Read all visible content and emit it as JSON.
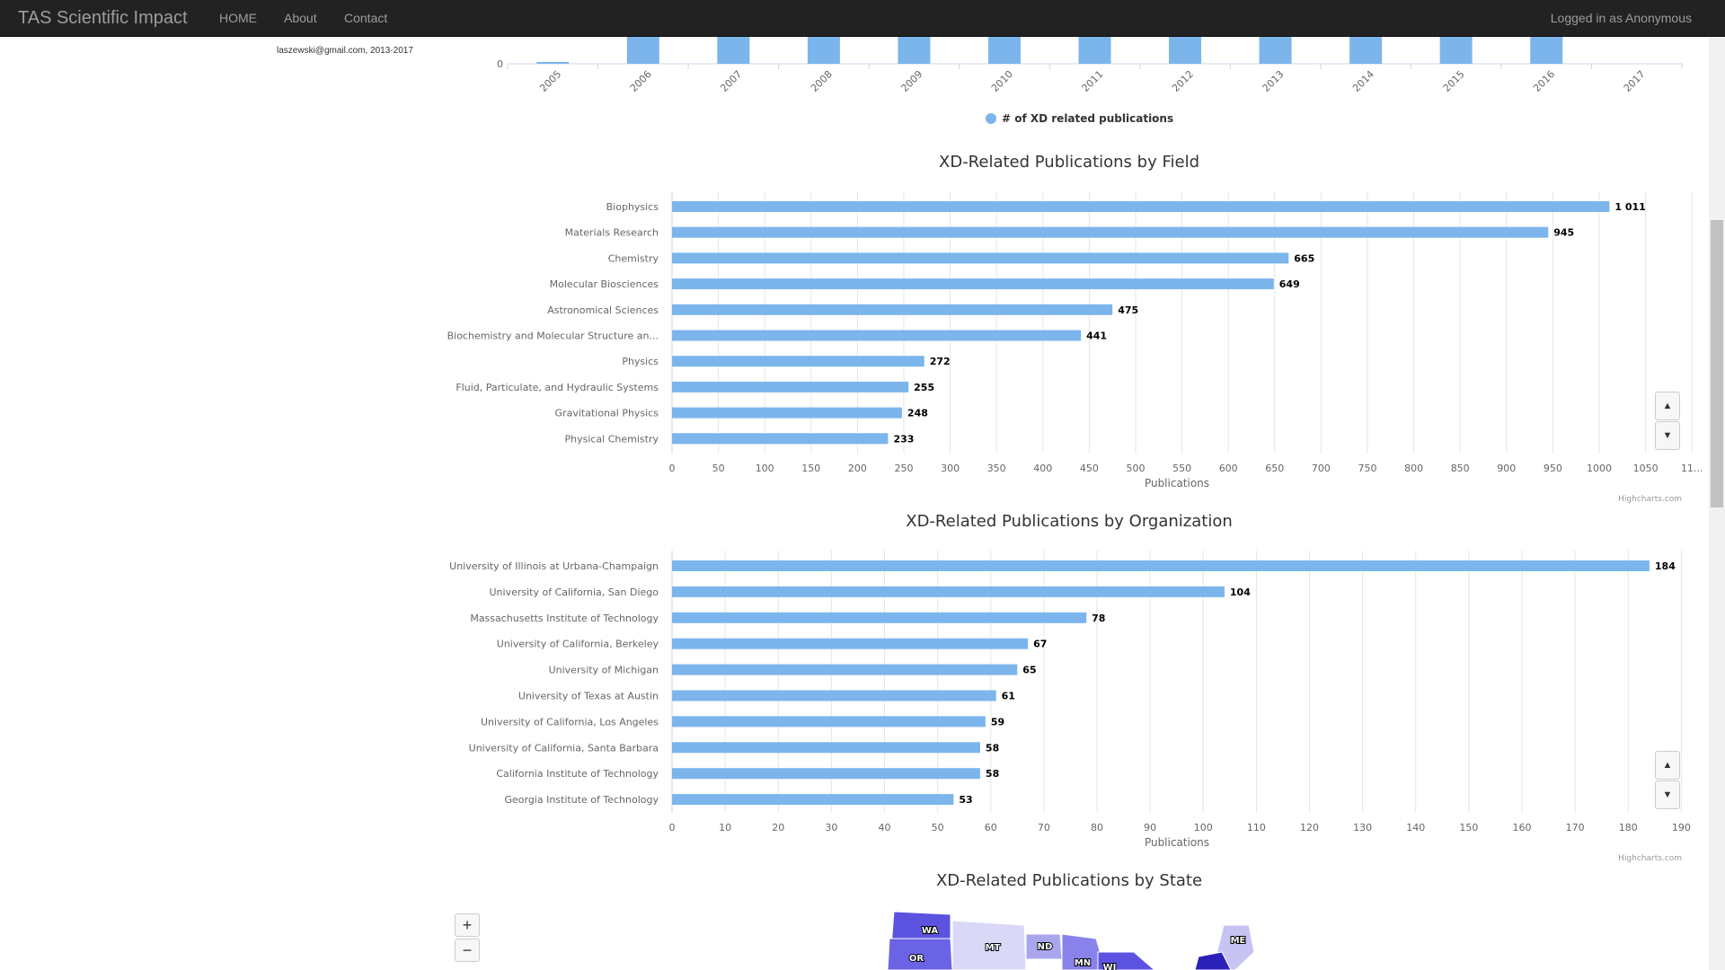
{
  "navbar": {
    "brand": "TAS Scientific Impact",
    "links": [
      "HOME",
      "About",
      "Contact"
    ],
    "user": "Logged in as Anonymous"
  },
  "sidebar": {
    "email_line": "laszewski@gmail.com, 2013-2017"
  },
  "colors": {
    "bar": "#7cb5ec",
    "grid": "#e6e6e6",
    "navbar": "#222222"
  },
  "chart_data": [
    {
      "type": "bar",
      "title": "",
      "categories": [
        "2005",
        "2006",
        "2007",
        "2008",
        "2009",
        "2010",
        "2011",
        "2012",
        "2013",
        "2014",
        "2015",
        "2016",
        "2017"
      ],
      "series": [
        {
          "name": "# of XD related publications",
          "values": [
            1,
            null,
            null,
            null,
            null,
            null,
            null,
            null,
            null,
            null,
            null,
            null,
            0
          ]
        }
      ],
      "ytick_visible": "0",
      "note_values_partially_visible": true
    },
    {
      "type": "bar",
      "orientation": "horizontal",
      "title": "XD-Related Publications by Field",
      "categories": [
        "Biophysics",
        "Materials Research",
        "Chemistry",
        "Molecular Biosciences",
        "Astronomical Sciences",
        "Biochemistry and Molecular Structure an...",
        "Physics",
        "Fluid, Particulate, and Hydraulic Systems",
        "Gravitational Physics",
        "Physical Chemistry"
      ],
      "values": [
        1011,
        945,
        665,
        649,
        475,
        441,
        272,
        255,
        248,
        233
      ],
      "value_labels": [
        "1 011",
        "945",
        "665",
        "649",
        "475",
        "441",
        "272",
        "255",
        "248",
        "233"
      ],
      "xlabel": "Publications",
      "xlim": [
        0,
        1100
      ],
      "ticks": [
        "0",
        "50",
        "100",
        "150",
        "200",
        "250",
        "300",
        "350",
        "400",
        "450",
        "500",
        "550",
        "600",
        "650",
        "700",
        "750",
        "800",
        "850",
        "900",
        "950",
        "1000",
        "1050",
        "11..."
      ],
      "credit": "Highcharts.com"
    },
    {
      "type": "bar",
      "orientation": "horizontal",
      "title": "XD-Related Publications by Organization",
      "categories": [
        "University of Illinois at Urbana-Champaign",
        "University of California, San Diego",
        "Massachusetts Institute of Technology",
        "University of California, Berkeley",
        "University of Michigan",
        "University of Texas at Austin",
        "University of California, Los Angeles",
        "University of California, Santa Barbara",
        "California Institute of Technology",
        "Georgia Institute of Technology"
      ],
      "values": [
        184,
        104,
        78,
        67,
        65,
        61,
        59,
        58,
        58,
        53
      ],
      "value_labels": [
        "184",
        "104",
        "78",
        "67",
        "65",
        "61",
        "59",
        "58",
        "58",
        "53"
      ],
      "xlabel": "Publications",
      "xlim": [
        0,
        190
      ],
      "ticks": [
        "0",
        "10",
        "20",
        "30",
        "40",
        "50",
        "60",
        "70",
        "80",
        "90",
        "100",
        "110",
        "120",
        "130",
        "140",
        "150",
        "160",
        "170",
        "180",
        "190"
      ],
      "credit": "Highcharts.com"
    },
    {
      "type": "map",
      "title": "XD-Related Publications by State",
      "labels": [
        "WA",
        "OR",
        "MT",
        "ND",
        "MN",
        "WI",
        "ME"
      ],
      "zoom_in": "+",
      "zoom_out": "−"
    }
  ]
}
